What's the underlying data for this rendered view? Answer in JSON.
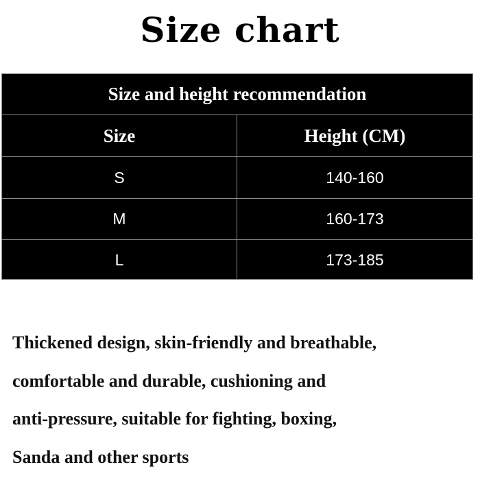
{
  "title": "Size chart",
  "table": {
    "caption": "Size and height recommendation",
    "headers": [
      "Size",
      "Height (CM)"
    ],
    "rows": [
      [
        "S",
        "140-160"
      ],
      [
        "M",
        "160-173"
      ],
      [
        "L",
        "173-185"
      ]
    ]
  },
  "description": [
    "Thickened design, skin-friendly and breathable,",
    "comfortable and durable, cushioning and",
    "anti-pressure, suitable for fighting, boxing,",
    "Sanda and other sports"
  ]
}
